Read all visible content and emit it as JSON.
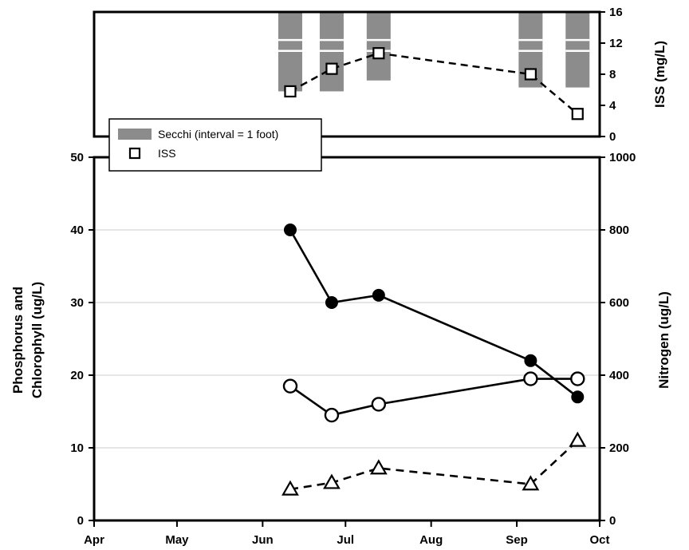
{
  "chart_data": [
    {
      "type": "bar-line",
      "panel": "top",
      "y2label": "ISS (mg/L)",
      "y2lim": [
        0,
        16
      ],
      "y2ticks": [
        "16",
        "12",
        "8",
        "4",
        "0"
      ],
      "secchi": {
        "name": "Secchi (interval = 1 foot)",
        "color": "#8c8c8c",
        "bars": [
          {
            "date": "2000-06-11",
            "bottom": 5.8,
            "top": 16
          },
          {
            "date": "2000-06-26",
            "bottom": 5.8,
            "top": 16
          },
          {
            "date": "2000-07-13",
            "bottom": 7.2,
            "top": 16
          },
          {
            "date": "2000-09-06",
            "bottom": 6.3,
            "top": 16
          },
          {
            "date": "2000-09-23",
            "bottom": 6.3,
            "top": 16
          }
        ],
        "interval_lines": [
          11,
          12.4
        ]
      },
      "iss": {
        "name": "ISS",
        "points": [
          {
            "date": "2000-06-11",
            "value": 5.8
          },
          {
            "date": "2000-06-26",
            "value": 8.7
          },
          {
            "date": "2000-07-13",
            "value": 10.7
          },
          {
            "date": "2000-09-06",
            "value": 8.0
          },
          {
            "date": "2000-09-23",
            "value": 2.9
          }
        ]
      }
    },
    {
      "type": "line",
      "panel": "bottom",
      "ylabel_line1": "Phosphorus and",
      "ylabel_line2": "Chlorophyll (ug/L)",
      "y2label": "Nitrogen (ug/L)",
      "ylim": [
        0,
        50
      ],
      "y2lim": [
        0,
        1000
      ],
      "yticks": [
        "50",
        "40",
        "30",
        "20",
        "10",
        "0"
      ],
      "y2ticks": [
        "1000",
        "800",
        "600",
        "400",
        "200",
        "0"
      ],
      "xticks": [
        {
          "date": "2000-04-01",
          "label": "Apr"
        },
        {
          "date": "2000-05-01",
          "label": "May"
        },
        {
          "date": "2000-06-01",
          "label": "Jun"
        },
        {
          "date": "2000-07-01",
          "label": "Jul"
        },
        {
          "date": "2000-08-01",
          "label": "Aug"
        },
        {
          "date": "2000-09-01",
          "label": "Sep"
        },
        {
          "date": "2000-10-01",
          "label": "Oct"
        }
      ],
      "xlim": [
        "2000-04-01",
        "2000-10-01"
      ],
      "grid": true,
      "series": [
        {
          "marker": "filled-circle",
          "line": "solid",
          "axis": "left",
          "points": [
            {
              "date": "2000-06-11",
              "value": 40
            },
            {
              "date": "2000-06-26",
              "value": 30
            },
            {
              "date": "2000-07-13",
              "value": 31
            },
            {
              "date": "2000-09-06",
              "value": 22
            },
            {
              "date": "2000-09-23",
              "value": 17
            }
          ]
        },
        {
          "marker": "open-circle",
          "line": "solid",
          "axis": "left",
          "points": [
            {
              "date": "2000-06-11",
              "value": 18.5
            },
            {
              "date": "2000-06-26",
              "value": 14.5
            },
            {
              "date": "2000-07-13",
              "value": 16
            },
            {
              "date": "2000-09-06",
              "value": 19.5
            },
            {
              "date": "2000-09-23",
              "value": 19.5
            }
          ]
        },
        {
          "marker": "open-triangle",
          "line": "dashed",
          "axis": "left",
          "points": [
            {
              "date": "2000-06-11",
              "value": 4.3
            },
            {
              "date": "2000-06-26",
              "value": 5.2
            },
            {
              "date": "2000-07-13",
              "value": 7.2
            },
            {
              "date": "2000-09-06",
              "value": 5.0
            },
            {
              "date": "2000-09-23",
              "value": 11
            }
          ]
        }
      ]
    }
  ]
}
